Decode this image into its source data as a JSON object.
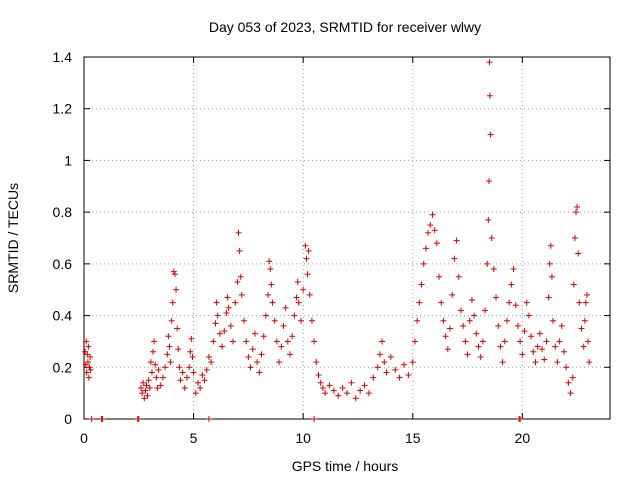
{
  "chart_data": {
    "type": "scatter",
    "title": "Day 053 of 2023, SRMTID for receiver wlwy",
    "xlabel": "GPS time / hours",
    "ylabel": "SRMTID / TECUs",
    "xlim": [
      0,
      24
    ],
    "ylim": [
      0,
      1.4
    ],
    "xticks": [
      0,
      5,
      10,
      15,
      20
    ],
    "xtick_labels": [
      "0",
      "5",
      "10",
      "15",
      "20"
    ],
    "yticks": [
      0,
      0.2,
      0.4,
      0.6,
      0.8,
      1.0,
      1.2,
      1.4
    ],
    "ytick_labels": [
      "0",
      "0.2",
      "0.4",
      "0.6",
      "0.8",
      "1",
      "1.2",
      "1.4"
    ],
    "grid": true,
    "marker": "+",
    "color": "#e00000",
    "series": [
      {
        "name": "SRMTID",
        "points": [
          [
            0.05,
            0.26
          ],
          [
            0.08,
            0.21
          ],
          [
            0.1,
            0.3
          ],
          [
            0.12,
            0.18
          ],
          [
            0.15,
            0.25
          ],
          [
            0.18,
            0.22
          ],
          [
            0.2,
            0.28
          ],
          [
            0.22,
            0.16
          ],
          [
            0.25,
            0.2
          ],
          [
            0.28,
            0.24
          ],
          [
            0.3,
            0.19
          ],
          [
            0.35,
            0.0
          ],
          [
            0.8,
            0.0
          ],
          [
            0.85,
            0.0
          ],
          [
            2.45,
            0.0
          ],
          [
            2.5,
            0.0
          ],
          [
            5.7,
            0.0
          ],
          [
            10.5,
            0.0
          ],
          [
            19.85,
            0.0
          ],
          [
            19.9,
            0.0
          ],
          [
            2.6,
            0.12
          ],
          [
            2.65,
            0.1
          ],
          [
            2.7,
            0.14
          ],
          [
            2.75,
            0.08
          ],
          [
            2.8,
            0.11
          ],
          [
            2.85,
            0.13
          ],
          [
            2.9,
            0.09
          ],
          [
            2.95,
            0.15
          ],
          [
            3.0,
            0.12
          ],
          [
            3.05,
            0.22
          ],
          [
            3.1,
            0.18
          ],
          [
            3.15,
            0.26
          ],
          [
            3.2,
            0.3
          ],
          [
            3.25,
            0.21
          ],
          [
            3.3,
            0.16
          ],
          [
            3.35,
            0.12
          ],
          [
            3.4,
            0.19
          ],
          [
            3.5,
            0.13
          ],
          [
            3.6,
            0.16
          ],
          [
            3.7,
            0.2
          ],
          [
            3.8,
            0.25
          ],
          [
            3.85,
            0.32
          ],
          [
            3.9,
            0.28
          ],
          [
            3.95,
            0.22
          ],
          [
            4.0,
            0.38
          ],
          [
            4.05,
            0.45
          ],
          [
            4.1,
            0.57
          ],
          [
            4.15,
            0.56
          ],
          [
            4.2,
            0.5
          ],
          [
            4.25,
            0.35
          ],
          [
            4.3,
            0.27
          ],
          [
            4.35,
            0.2
          ],
          [
            4.4,
            0.15
          ],
          [
            4.5,
            0.18
          ],
          [
            4.6,
            0.12
          ],
          [
            4.7,
            0.16
          ],
          [
            4.8,
            0.2
          ],
          [
            4.85,
            0.26
          ],
          [
            4.9,
            0.31
          ],
          [
            4.95,
            0.24
          ],
          [
            5.0,
            0.18
          ],
          [
            5.1,
            0.1
          ],
          [
            5.2,
            0.14
          ],
          [
            5.3,
            0.12
          ],
          [
            5.4,
            0.17
          ],
          [
            5.5,
            0.15
          ],
          [
            5.6,
            0.19
          ],
          [
            5.7,
            0.24
          ],
          [
            5.8,
            0.22
          ],
          [
            5.9,
            0.3
          ],
          [
            6.0,
            0.37
          ],
          [
            6.05,
            0.45
          ],
          [
            6.1,
            0.4
          ],
          [
            6.2,
            0.33
          ],
          [
            6.3,
            0.28
          ],
          [
            6.4,
            0.34
          ],
          [
            6.5,
            0.41
          ],
          [
            6.55,
            0.47
          ],
          [
            6.6,
            0.43
          ],
          [
            6.7,
            0.36
          ],
          [
            6.8,
            0.3
          ],
          [
            6.9,
            0.45
          ],
          [
            7.0,
            0.53
          ],
          [
            7.05,
            0.72
          ],
          [
            7.1,
            0.65
          ],
          [
            7.15,
            0.55
          ],
          [
            7.2,
            0.48
          ],
          [
            7.3,
            0.38
          ],
          [
            7.4,
            0.3
          ],
          [
            7.5,
            0.24
          ],
          [
            7.6,
            0.2
          ],
          [
            7.7,
            0.27
          ],
          [
            7.8,
            0.33
          ],
          [
            7.9,
            0.22
          ],
          [
            8.0,
            0.18
          ],
          [
            8.1,
            0.25
          ],
          [
            8.2,
            0.32
          ],
          [
            8.3,
            0.4
          ],
          [
            8.4,
            0.48
          ],
          [
            8.45,
            0.61
          ],
          [
            8.5,
            0.58
          ],
          [
            8.55,
            0.52
          ],
          [
            8.6,
            0.45
          ],
          [
            8.7,
            0.38
          ],
          [
            8.8,
            0.3
          ],
          [
            8.9,
            0.22
          ],
          [
            9.0,
            0.28
          ],
          [
            9.1,
            0.36
          ],
          [
            9.2,
            0.43
          ],
          [
            9.3,
            0.3
          ],
          [
            9.4,
            0.25
          ],
          [
            9.5,
            0.32
          ],
          [
            9.6,
            0.4
          ],
          [
            9.7,
            0.47
          ],
          [
            9.75,
            0.53
          ],
          [
            9.8,
            0.45
          ],
          [
            9.9,
            0.38
          ],
          [
            10.0,
            0.5
          ],
          [
            10.1,
            0.67
          ],
          [
            10.15,
            0.62
          ],
          [
            10.2,
            0.56
          ],
          [
            10.25,
            0.65
          ],
          [
            10.3,
            0.48
          ],
          [
            10.4,
            0.38
          ],
          [
            10.5,
            0.3
          ],
          [
            10.6,
            0.22
          ],
          [
            10.7,
            0.17
          ],
          [
            10.8,
            0.14
          ],
          [
            10.9,
            0.12
          ],
          [
            11.0,
            0.1
          ],
          [
            11.2,
            0.13
          ],
          [
            11.4,
            0.11
          ],
          [
            11.6,
            0.09
          ],
          [
            11.8,
            0.12
          ],
          [
            12.0,
            0.1
          ],
          [
            12.2,
            0.14
          ],
          [
            12.4,
            0.08
          ],
          [
            12.6,
            0.11
          ],
          [
            12.8,
            0.13
          ],
          [
            13.0,
            0.1
          ],
          [
            13.2,
            0.16
          ],
          [
            13.4,
            0.2
          ],
          [
            13.5,
            0.25
          ],
          [
            13.6,
            0.3
          ],
          [
            13.7,
            0.22
          ],
          [
            13.8,
            0.18
          ],
          [
            14.0,
            0.24
          ],
          [
            14.2,
            0.19
          ],
          [
            14.4,
            0.16
          ],
          [
            14.6,
            0.21
          ],
          [
            14.8,
            0.17
          ],
          [
            15.0,
            0.22
          ],
          [
            15.1,
            0.3
          ],
          [
            15.2,
            0.38
          ],
          [
            15.3,
            0.45
          ],
          [
            15.4,
            0.52
          ],
          [
            15.5,
            0.6
          ],
          [
            15.6,
            0.66
          ],
          [
            15.7,
            0.72
          ],
          [
            15.8,
            0.75
          ],
          [
            15.9,
            0.79
          ],
          [
            16.0,
            0.73
          ],
          [
            16.1,
            0.68
          ],
          [
            16.2,
            0.55
          ],
          [
            16.3,
            0.45
          ],
          [
            16.4,
            0.38
          ],
          [
            16.5,
            0.32
          ],
          [
            16.6,
            0.27
          ],
          [
            16.7,
            0.35
          ],
          [
            16.8,
            0.48
          ],
          [
            16.9,
            0.62
          ],
          [
            17.0,
            0.69
          ],
          [
            17.1,
            0.55
          ],
          [
            17.2,
            0.42
          ],
          [
            17.3,
            0.36
          ],
          [
            17.4,
            0.3
          ],
          [
            17.5,
            0.25
          ],
          [
            17.6,
            0.38
          ],
          [
            17.7,
            0.46
          ],
          [
            17.8,
            0.4
          ],
          [
            17.9,
            0.33
          ],
          [
            18.0,
            0.28
          ],
          [
            18.1,
            0.24
          ],
          [
            18.2,
            0.3
          ],
          [
            18.3,
            0.42
          ],
          [
            18.4,
            0.6
          ],
          [
            18.45,
            0.77
          ],
          [
            18.5,
            1.38
          ],
          [
            18.52,
            1.25
          ],
          [
            18.55,
            1.1
          ],
          [
            18.48,
            0.92
          ],
          [
            18.6,
            0.7
          ],
          [
            18.7,
            0.58
          ],
          [
            18.8,
            0.47
          ],
          [
            18.9,
            0.36
          ],
          [
            19.0,
            0.28
          ],
          [
            19.1,
            0.22
          ],
          [
            19.2,
            0.3
          ],
          [
            19.3,
            0.38
          ],
          [
            19.4,
            0.45
          ],
          [
            19.5,
            0.52
          ],
          [
            19.6,
            0.58
          ],
          [
            19.7,
            0.44
          ],
          [
            19.8,
            0.36
          ],
          [
            19.9,
            0.3
          ],
          [
            20.0,
            0.25
          ],
          [
            20.1,
            0.34
          ],
          [
            20.2,
            0.45
          ],
          [
            20.3,
            0.4
          ],
          [
            20.4,
            0.32
          ],
          [
            20.5,
            0.26
          ],
          [
            20.6,
            0.22
          ],
          [
            20.7,
            0.28
          ],
          [
            20.8,
            0.33
          ],
          [
            20.9,
            0.27
          ],
          [
            21.0,
            0.23
          ],
          [
            21.1,
            0.3
          ],
          [
            21.2,
            0.47
          ],
          [
            21.25,
            0.6
          ],
          [
            21.3,
            0.67
          ],
          [
            21.35,
            0.55
          ],
          [
            21.4,
            0.38
          ],
          [
            21.5,
            0.28
          ],
          [
            21.6,
            0.22
          ],
          [
            21.7,
            0.3
          ],
          [
            21.8,
            0.36
          ],
          [
            21.9,
            0.26
          ],
          [
            22.0,
            0.2
          ],
          [
            22.1,
            0.14
          ],
          [
            22.2,
            0.1
          ],
          [
            22.3,
            0.16
          ],
          [
            22.35,
            0.52
          ],
          [
            22.4,
            0.7
          ],
          [
            22.45,
            0.8
          ],
          [
            22.5,
            0.82
          ],
          [
            22.55,
            0.64
          ],
          [
            22.6,
            0.45
          ],
          [
            22.7,
            0.35
          ],
          [
            22.8,
            0.28
          ],
          [
            22.85,
            0.38
          ],
          [
            22.9,
            0.45
          ],
          [
            22.95,
            0.48
          ],
          [
            23.0,
            0.3
          ],
          [
            23.05,
            0.22
          ]
        ]
      }
    ]
  }
}
